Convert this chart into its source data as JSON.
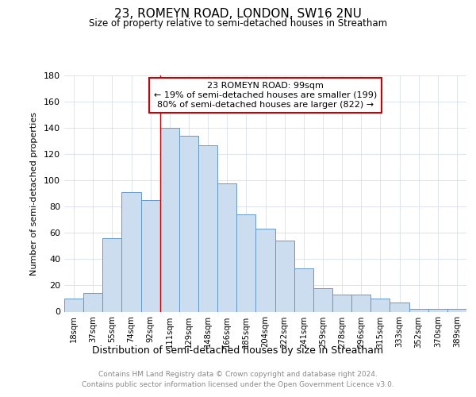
{
  "title": "23, ROMEYN ROAD, LONDON, SW16 2NU",
  "subtitle": "Size of property relative to semi-detached houses in Streatham",
  "xlabel": "Distribution of semi-detached houses by size in Streatham",
  "ylabel": "Number of semi-detached properties",
  "categories": [
    "18sqm",
    "37sqm",
    "55sqm",
    "74sqm",
    "92sqm",
    "111sqm",
    "129sqm",
    "148sqm",
    "166sqm",
    "185sqm",
    "204sqm",
    "222sqm",
    "241sqm",
    "259sqm",
    "278sqm",
    "296sqm",
    "315sqm",
    "333sqm",
    "352sqm",
    "370sqm",
    "389sqm"
  ],
  "values": [
    10,
    14,
    56,
    91,
    85,
    140,
    134,
    127,
    98,
    74,
    63,
    54,
    33,
    18,
    13,
    13,
    10,
    7,
    2,
    2,
    2
  ],
  "bar_color": "#ccddf0",
  "bar_edge_color": "#6699cc",
  "vline_x": 4.5,
  "vline_color": "#cc0000",
  "annotation_line1": "23 ROMEYN ROAD: 99sqm",
  "annotation_line2": "← 19% of semi-detached houses are smaller (199)",
  "annotation_line3": "80% of semi-detached houses are larger (822) →",
  "annotation_box_color": "#cc0000",
  "ylim": [
    0,
    180
  ],
  "yticks": [
    0,
    20,
    40,
    60,
    80,
    100,
    120,
    140,
    160,
    180
  ],
  "footer_line1": "Contains HM Land Registry data © Crown copyright and database right 2024.",
  "footer_line2": "Contains public sector information licensed under the Open Government Licence v3.0.",
  "background_color": "#ffffff",
  "grid_color": "#d0d8e8"
}
